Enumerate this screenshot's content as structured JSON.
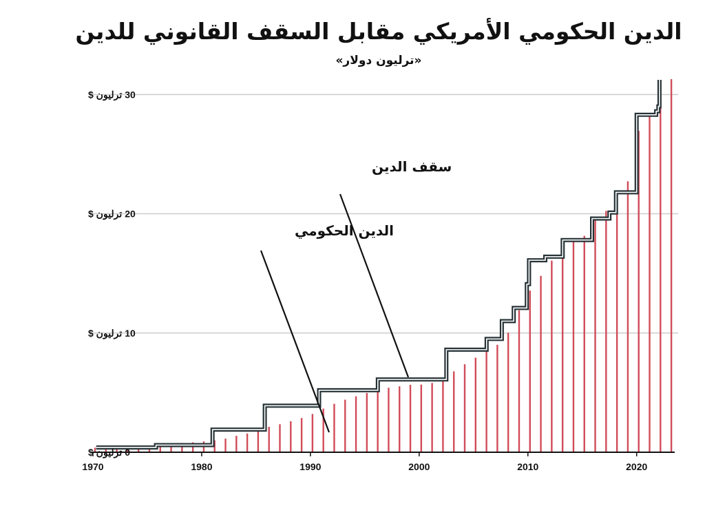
{
  "chart_data": {
    "type": "bar",
    "title": "الدين الحكومي الأمريكي مقابل السقف القانوني للدين",
    "subtitle": "«ترليون دولار»",
    "xlabel": "",
    "ylabel": "",
    "xlim": [
      1970,
      2023.5
    ],
    "ylim": [
      0,
      31
    ],
    "x_ticks": [
      1970,
      1980,
      1990,
      2000,
      2010,
      2020
    ],
    "y_ticks": [
      {
        "value": 0,
        "label": "0 ترليون $"
      },
      {
        "value": 10,
        "label": "10 ترليون $"
      },
      {
        "value": 20,
        "label": "20 ترليون $"
      },
      {
        "value": 30,
        "label": "30 ترليون $"
      }
    ],
    "grid": true,
    "colors": {
      "debt": "#d14b58",
      "ceiling": "#263236",
      "grid": "#cccccc"
    },
    "series": [
      {
        "name": "الدين الحكومي",
        "kind": "bars",
        "x": [
          1970,
          1971,
          1972,
          1973,
          1974,
          1975,
          1976,
          1977,
          1978,
          1979,
          1980,
          1981,
          1982,
          1983,
          1984,
          1985,
          1986,
          1987,
          1988,
          1989,
          1990,
          1991,
          1992,
          1993,
          1994,
          1995,
          1996,
          1997,
          1998,
          1999,
          2000,
          2001,
          2002,
          2003,
          2004,
          2005,
          2006,
          2007,
          2008,
          2009,
          2010,
          2011,
          2012,
          2013,
          2014,
          2015,
          2016,
          2017,
          2018,
          2019,
          2020,
          2021,
          2022,
          2023
        ],
        "values": [
          0.38,
          0.41,
          0.44,
          0.47,
          0.48,
          0.54,
          0.63,
          0.71,
          0.78,
          0.83,
          0.91,
          1.0,
          1.14,
          1.38,
          1.57,
          1.82,
          2.13,
          2.35,
          2.6,
          2.87,
          3.21,
          3.66,
          4.06,
          4.41,
          4.69,
          4.97,
          5.22,
          5.41,
          5.53,
          5.66,
          5.67,
          5.81,
          6.23,
          6.78,
          7.38,
          7.93,
          8.51,
          9.01,
          10.02,
          11.91,
          13.56,
          14.79,
          16.07,
          16.74,
          17.82,
          18.15,
          19.57,
          20.24,
          21.52,
          22.72,
          26.95,
          28.43,
          30.93,
          33.17
        ]
      },
      {
        "name": "سقف الدين",
        "kind": "step",
        "points": [
          [
            1970.3,
            0.4
          ],
          [
            1975.8,
            0.4
          ],
          [
            1975.8,
            0.6
          ],
          [
            1981,
            0.6
          ],
          [
            1981,
            1.9
          ],
          [
            1985.8,
            1.9
          ],
          [
            1985.8,
            3.9
          ],
          [
            1990.8,
            3.9
          ],
          [
            1990.8,
            5.2
          ],
          [
            1996.2,
            5.2
          ],
          [
            1996.2,
            6.1
          ],
          [
            2002.5,
            6.1
          ],
          [
            2002.5,
            8.6
          ],
          [
            2006.2,
            8.6
          ],
          [
            2006.2,
            9.5
          ],
          [
            2007.6,
            9.5
          ],
          [
            2007.6,
            11.0
          ],
          [
            2008.7,
            11.0
          ],
          [
            2008.7,
            12.1
          ],
          [
            2009.9,
            12.1
          ],
          [
            2009.9,
            14.1
          ],
          [
            2010.1,
            14.1
          ],
          [
            2010.1,
            16.1
          ],
          [
            2011.6,
            16.1
          ],
          [
            2011.6,
            16.4
          ],
          [
            2013.2,
            16.4
          ],
          [
            2013.2,
            17.8
          ],
          [
            2015.9,
            17.8
          ],
          [
            2015.9,
            19.6
          ],
          [
            2017.5,
            19.6
          ],
          [
            2017.5,
            20.1
          ],
          [
            2018.1,
            20.1
          ],
          [
            2018.1,
            21.8
          ],
          [
            2020.0,
            21.8
          ],
          [
            2020.0,
            28.3
          ],
          [
            2021.8,
            28.3
          ],
          [
            2021.8,
            28.6
          ],
          [
            2022.0,
            28.6
          ],
          [
            2022.0,
            29.0
          ],
          [
            2022.1,
            29.0
          ],
          [
            2022.1,
            31.4
          ]
        ]
      }
    ],
    "annotations": [
      {
        "text": "سقف الدين",
        "target_series": "سقف الدين"
      },
      {
        "text": "الدين الحكومي",
        "target_series": "الدين الحكومي"
      }
    ]
  }
}
